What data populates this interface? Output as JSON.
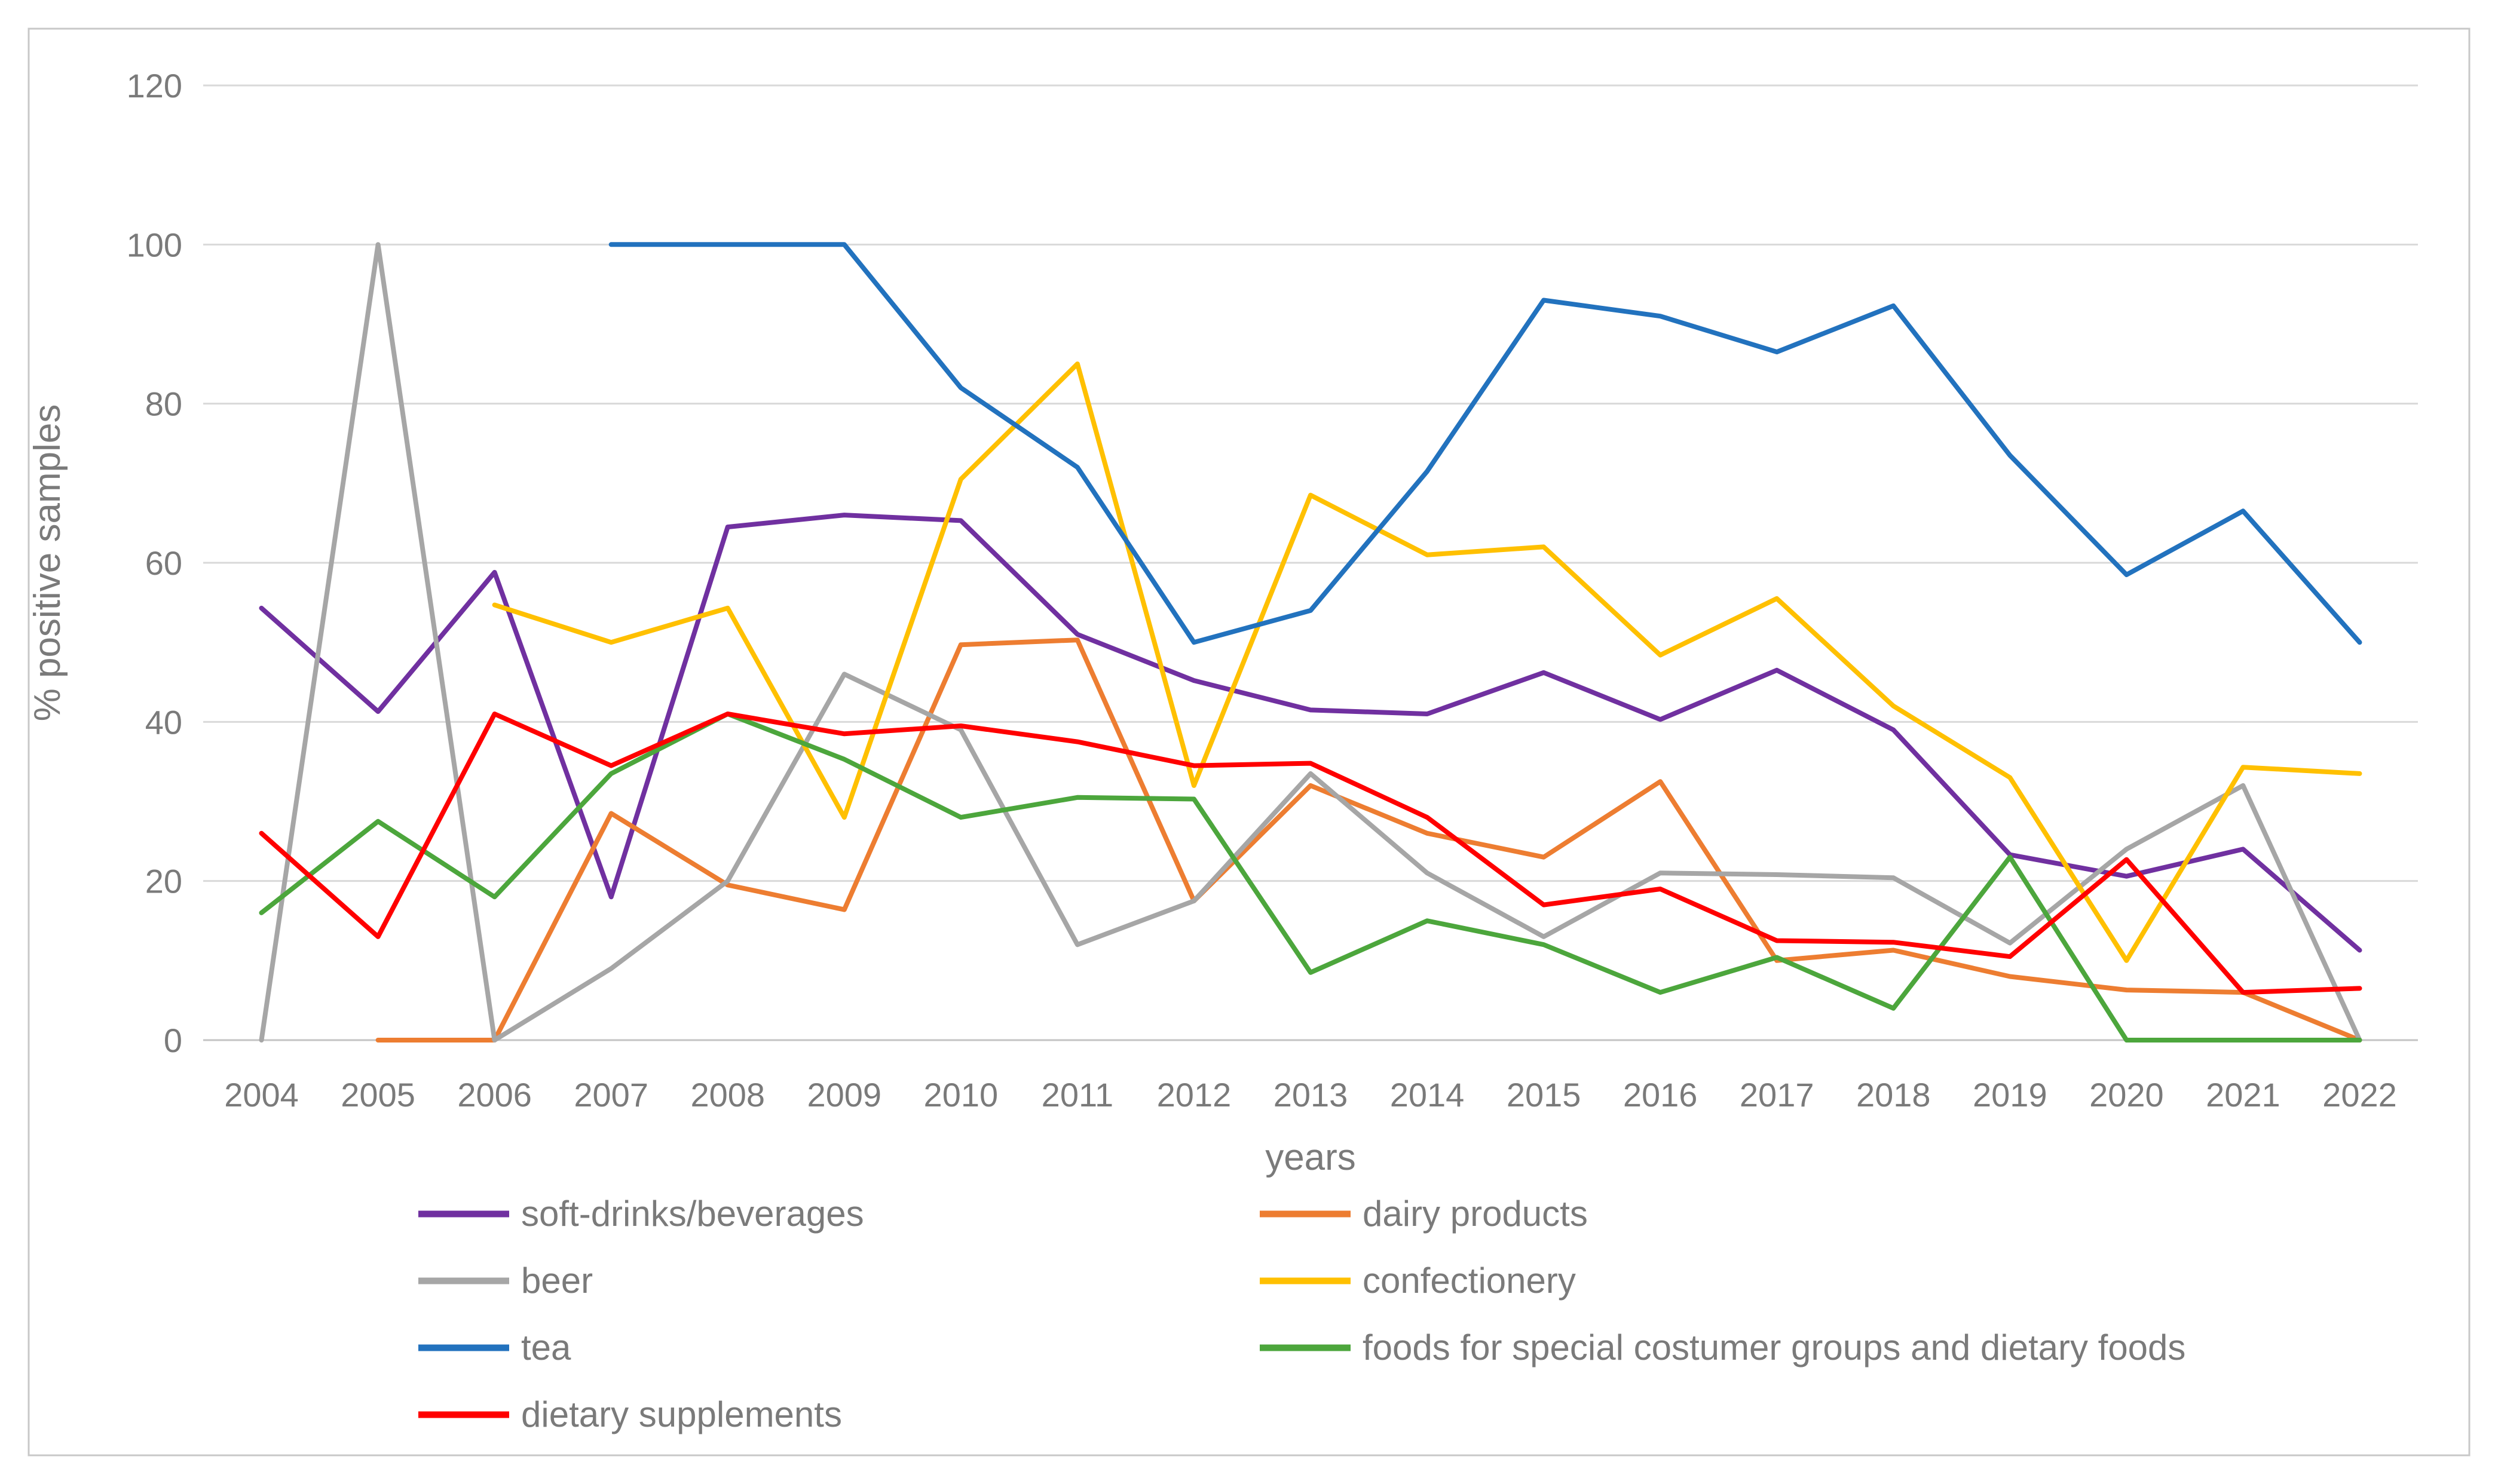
{
  "chart_data": {
    "type": "line",
    "title": "",
    "xlabel": "years",
    "ylabel": "% positive samples",
    "ylim": [
      0,
      120
    ],
    "yticks": [
      0,
      20,
      40,
      60,
      80,
      100,
      120
    ],
    "grid": true,
    "legend_position": "bottom-two-columns",
    "categories": [
      "2004",
      "2005",
      "2006",
      "2007",
      "2008",
      "2009",
      "2010",
      "2011",
      "2012",
      "2013",
      "2014",
      "2015",
      "2016",
      "2017",
      "2018",
      "2019",
      "2020",
      "2021",
      "2022"
    ],
    "series": [
      {
        "name": "soft-drinks/beverages",
        "color": "#7030A0",
        "values": [
          54.3,
          41.3,
          58.8,
          18,
          64.5,
          66,
          65.3,
          51,
          45.2,
          41.5,
          41,
          46.2,
          40.3,
          46.5,
          39,
          23.3,
          20.6,
          24,
          11.3
        ]
      },
      {
        "name": "dairy products",
        "color": "#ED7D31",
        "values": [
          null,
          0,
          0,
          28.5,
          19.5,
          16.4,
          49.7,
          50.3,
          17.5,
          32,
          26,
          23,
          32.5,
          10,
          11.3,
          8,
          6.3,
          6,
          0
        ]
      },
      {
        "name": "beer",
        "color": "#A6A6A6",
        "values": [
          0,
          100,
          0,
          9,
          20,
          46,
          39,
          12,
          17.5,
          33.5,
          21,
          13,
          21,
          20.8,
          20.4,
          12.2,
          24,
          32,
          0
        ]
      },
      {
        "name": "confectionery",
        "color": "#FFC000",
        "values": [
          null,
          null,
          54.7,
          50,
          54.3,
          28,
          70.5,
          85,
          32,
          68.5,
          61,
          62,
          48.4,
          55.5,
          42,
          33,
          10,
          34.3,
          33.5
        ]
      },
      {
        "name": "tea",
        "color": "#2272BE",
        "values": [
          null,
          null,
          null,
          100,
          100,
          100,
          82,
          72,
          50,
          54,
          71.5,
          93,
          91,
          86.5,
          92.3,
          73.5,
          58.5,
          66.5,
          50
        ]
      },
      {
        "name": "foods for special costumer groups and dietary foods",
        "color": "#4CA63C",
        "values": [
          16,
          27.5,
          18,
          33.5,
          41,
          35.3,
          28,
          30.5,
          30.3,
          8.5,
          15,
          12,
          6,
          10.4,
          4,
          23,
          0,
          0,
          0
        ]
      },
      {
        "name": "dietary supplements",
        "color": "#FF0000",
        "values": [
          26,
          13,
          41,
          34.5,
          41,
          38.5,
          39.5,
          37.5,
          34.5,
          34.8,
          28,
          17,
          19,
          12.5,
          12.3,
          10.5,
          22.7,
          6,
          6.5
        ]
      }
    ]
  }
}
